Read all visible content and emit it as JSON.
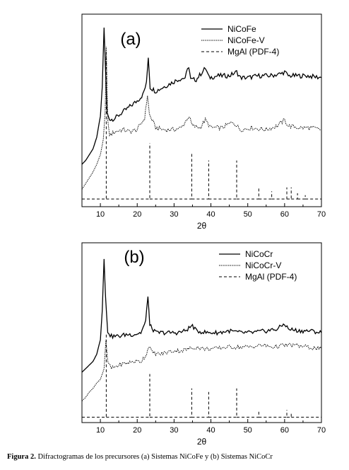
{
  "chart_data": [
    {
      "type": "line",
      "panel_label": "(a)",
      "xlabel": "2θ",
      "ylabel": "",
      "xlim": [
        5,
        70
      ],
      "xticks": [
        10,
        20,
        30,
        40,
        50,
        60,
        70
      ],
      "grid": false,
      "legend_placement": "top-right",
      "series": [
        {
          "name": "NiCoFe",
          "style": "solid",
          "points": [
            [
              5,
              0.22
            ],
            [
              6,
              0.24
            ],
            [
              7,
              0.27
            ],
            [
              8,
              0.3
            ],
            [
              9,
              0.36
            ],
            [
              10,
              0.47
            ],
            [
              10.5,
              0.62
            ],
            [
              11.0,
              0.93
            ],
            [
              11.3,
              0.76
            ],
            [
              11.8,
              0.49
            ],
            [
              12.5,
              0.45
            ],
            [
              14,
              0.46
            ],
            [
              16,
              0.49
            ],
            [
              18,
              0.52
            ],
            [
              20,
              0.55
            ],
            [
              21.5,
              0.58
            ],
            [
              22.5,
              0.64
            ],
            [
              23.0,
              0.78
            ],
            [
              23.5,
              0.62
            ],
            [
              25,
              0.6
            ],
            [
              27,
              0.62
            ],
            [
              29,
              0.64
            ],
            [
              31,
              0.66
            ],
            [
              33,
              0.67
            ],
            [
              34,
              0.73
            ],
            [
              34.5,
              0.66
            ],
            [
              36,
              0.66
            ],
            [
              38.5,
              0.72
            ],
            [
              39.5,
              0.67
            ],
            [
              42,
              0.68
            ],
            [
              45,
              0.68
            ],
            [
              47,
              0.7
            ],
            [
              48,
              0.67
            ],
            [
              50,
              0.67
            ],
            [
              53,
              0.68
            ],
            [
              56,
              0.68
            ],
            [
              59,
              0.69
            ],
            [
              60,
              0.7
            ],
            [
              61,
              0.68
            ],
            [
              63,
              0.68
            ],
            [
              66,
              0.68
            ],
            [
              70,
              0.67
            ]
          ]
        },
        {
          "name": "NiCoFe-V",
          "style": "dotted",
          "points": [
            [
              5,
              0.09
            ],
            [
              6,
              0.12
            ],
            [
              7,
              0.15
            ],
            [
              8,
              0.18
            ],
            [
              9,
              0.22
            ],
            [
              10,
              0.27
            ],
            [
              10.8,
              0.35
            ],
            [
              11.3,
              0.5
            ],
            [
              11.6,
              0.83
            ],
            [
              12.0,
              0.45
            ],
            [
              12.5,
              0.37
            ],
            [
              14,
              0.39
            ],
            [
              16,
              0.4
            ],
            [
              18,
              0.39
            ],
            [
              20,
              0.4
            ],
            [
              22.0,
              0.46
            ],
            [
              22.8,
              0.58
            ],
            [
              23.3,
              0.48
            ],
            [
              25,
              0.41
            ],
            [
              27,
              0.4
            ],
            [
              30,
              0.4
            ],
            [
              32,
              0.41
            ],
            [
              34,
              0.47
            ],
            [
              35,
              0.42
            ],
            [
              37,
              0.41
            ],
            [
              38.5,
              0.45
            ],
            [
              40,
              0.41
            ],
            [
              43,
              0.41
            ],
            [
              46,
              0.44
            ],
            [
              48,
              0.4
            ],
            [
              51,
              0.41
            ],
            [
              55,
              0.4
            ],
            [
              58,
              0.42
            ],
            [
              60,
              0.45
            ],
            [
              61,
              0.42
            ],
            [
              64,
              0.41
            ],
            [
              67,
              0.41
            ],
            [
              70,
              0.4
            ]
          ]
        },
        {
          "name": "MgAl (PDF-4)",
          "style": "dashed",
          "baseline": 0.04,
          "peaks": [
            [
              11.6,
              0.76
            ],
            [
              23.4,
              0.29
            ],
            [
              34.8,
              0.24
            ],
            [
              39.4,
              0.2
            ],
            [
              47.0,
              0.2
            ],
            [
              53.0,
              0.06
            ],
            [
              56.5,
              0.04
            ],
            [
              60.6,
              0.06
            ],
            [
              61.8,
              0.06
            ],
            [
              63.5,
              0.03
            ],
            [
              65.6,
              0.02
            ]
          ]
        }
      ]
    },
    {
      "type": "line",
      "panel_label": "(b)",
      "xlabel": "2θ",
      "ylabel": "",
      "xlim": [
        5,
        70
      ],
      "xticks": [
        10,
        20,
        30,
        40,
        50,
        60,
        70
      ],
      "grid": false,
      "legend_placement": "top-right",
      "series": [
        {
          "name": "NiCoCr",
          "style": "solid",
          "points": [
            [
              5,
              0.28
            ],
            [
              6,
              0.3
            ],
            [
              7,
              0.32
            ],
            [
              8,
              0.34
            ],
            [
              9,
              0.38
            ],
            [
              10,
              0.46
            ],
            [
              10.5,
              0.62
            ],
            [
              11.0,
              0.91
            ],
            [
              11.4,
              0.7
            ],
            [
              12.0,
              0.5
            ],
            [
              13,
              0.48
            ],
            [
              15,
              0.48
            ],
            [
              17,
              0.49
            ],
            [
              19,
              0.49
            ],
            [
              21,
              0.5
            ],
            [
              22.3,
              0.56
            ],
            [
              22.9,
              0.71
            ],
            [
              23.4,
              0.54
            ],
            [
              25,
              0.5
            ],
            [
              28,
              0.5
            ],
            [
              31,
              0.5
            ],
            [
              33,
              0.51
            ],
            [
              35,
              0.54
            ],
            [
              36,
              0.51
            ],
            [
              39,
              0.5
            ],
            [
              42,
              0.5
            ],
            [
              45,
              0.51
            ],
            [
              48,
              0.5
            ],
            [
              51,
              0.5
            ],
            [
              55,
              0.51
            ],
            [
              58,
              0.52
            ],
            [
              60,
              0.55
            ],
            [
              61,
              0.52
            ],
            [
              64,
              0.51
            ],
            [
              67,
              0.51
            ],
            [
              70,
              0.5
            ]
          ]
        },
        {
          "name": "NiCoCr-V",
          "style": "dotted",
          "points": [
            [
              5,
              0.12
            ],
            [
              6,
              0.14
            ],
            [
              7,
              0.17
            ],
            [
              8,
              0.19
            ],
            [
              9,
              0.22
            ],
            [
              10,
              0.24
            ],
            [
              11,
              0.3
            ],
            [
              11.5,
              0.46
            ],
            [
              12.0,
              0.34
            ],
            [
              13,
              0.3
            ],
            [
              15,
              0.32
            ],
            [
              17,
              0.33
            ],
            [
              19,
              0.34
            ],
            [
              21,
              0.34
            ],
            [
              22.5,
              0.38
            ],
            [
              23.2,
              0.43
            ],
            [
              24,
              0.39
            ],
            [
              26,
              0.38
            ],
            [
              28,
              0.39
            ],
            [
              30,
              0.4
            ],
            [
              32,
              0.4
            ],
            [
              34,
              0.41
            ],
            [
              36,
              0.42
            ],
            [
              38,
              0.41
            ],
            [
              41,
              0.41
            ],
            [
              44,
              0.42
            ],
            [
              47,
              0.42
            ],
            [
              50,
              0.42
            ],
            [
              54,
              0.43
            ],
            [
              57,
              0.42
            ],
            [
              60,
              0.43
            ],
            [
              63,
              0.43
            ],
            [
              66,
              0.42
            ],
            [
              70,
              0.41
            ]
          ]
        },
        {
          "name": "MgAl (PDF-4)",
          "style": "dashed",
          "baseline": 0.03,
          "peaks": [
            [
              11.6,
              0.47
            ],
            [
              23.4,
              0.24
            ],
            [
              34.8,
              0.16
            ],
            [
              39.4,
              0.14
            ],
            [
              47.0,
              0.16
            ],
            [
              53.0,
              0.03
            ],
            [
              60.6,
              0.04
            ],
            [
              61.8,
              0.03
            ]
          ]
        }
      ]
    }
  ],
  "caption": {
    "label": "Figura 2.",
    "text": "Difractogramas de los precursores (a) Sistemas NiCoFe y (b) Sistemas NiCoCr"
  }
}
